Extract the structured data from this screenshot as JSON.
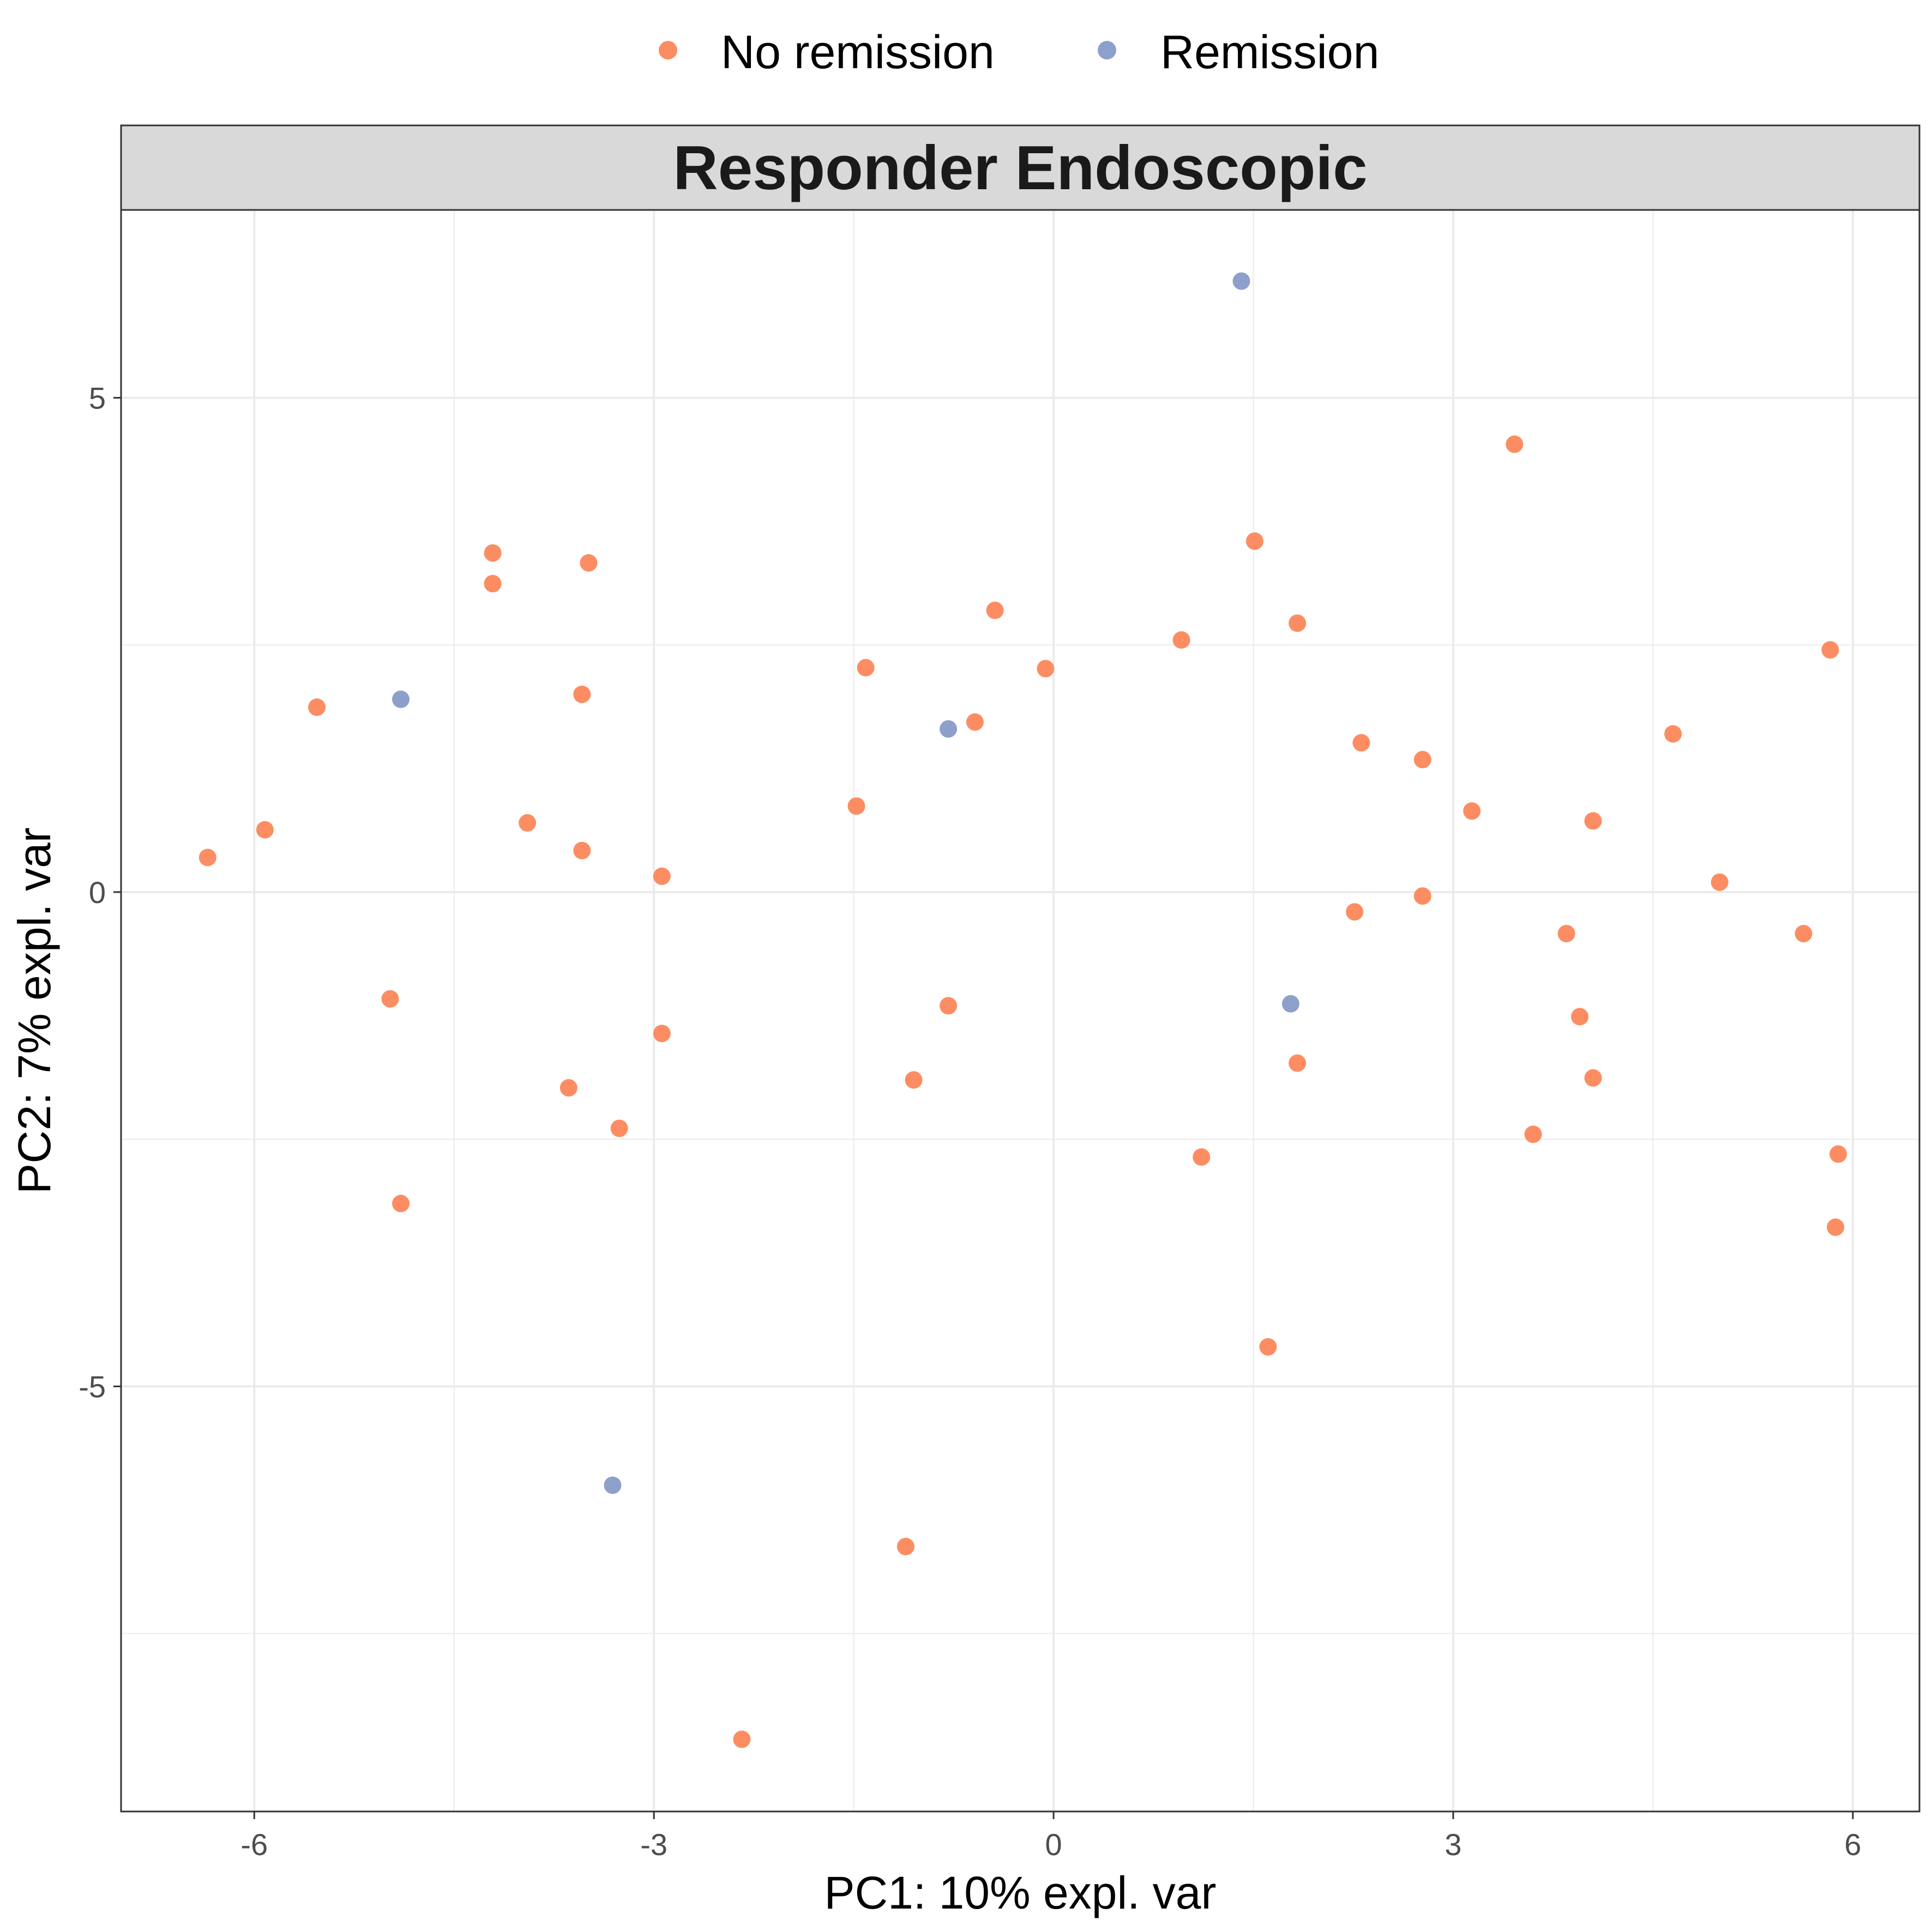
{
  "chart_data": {
    "type": "scatter",
    "title": "Responder Endoscopic",
    "xlabel": "PC1: 10% expl. var",
    "ylabel": "PC2: 7% expl. var",
    "xlim": [
      -7.0,
      6.5
    ],
    "ylim": [
      -9.3,
      6.9
    ],
    "x_ticks": [
      -6,
      -3,
      0,
      3,
      6
    ],
    "x_tick_labels": [
      "-6",
      "-3",
      "0",
      "3",
      "6"
    ],
    "y_ticks": [
      -5,
      0,
      5
    ],
    "y_tick_labels": [
      "-5",
      "0",
      "5"
    ],
    "grid": true,
    "legend_position": "top",
    "series": [
      {
        "name": "No remission",
        "color": "#FC8D62",
        "points": [
          [
            -6.35,
            0.35
          ],
          [
            -5.92,
            0.63
          ],
          [
            -5.53,
            1.87
          ],
          [
            -4.98,
            -1.08
          ],
          [
            -4.9,
            -3.15
          ],
          [
            -4.21,
            3.43
          ],
          [
            -4.21,
            3.12
          ],
          [
            -3.95,
            0.7
          ],
          [
            -3.64,
            -1.98
          ],
          [
            -3.54,
            2.0
          ],
          [
            -3.54,
            0.42
          ],
          [
            -3.49,
            3.33
          ],
          [
            -3.26,
            -2.39
          ],
          [
            -2.94,
            0.16
          ],
          [
            -2.94,
            -1.43
          ],
          [
            -2.34,
            -8.57
          ],
          [
            -1.48,
            0.87
          ],
          [
            -1.41,
            2.27
          ],
          [
            -1.11,
            -6.62
          ],
          [
            -1.05,
            -1.9
          ],
          [
            -0.79,
            -1.15
          ],
          [
            -0.59,
            1.72
          ],
          [
            -0.44,
            2.85
          ],
          [
            -0.06,
            2.26
          ],
          [
            0.96,
            2.55
          ],
          [
            1.11,
            -2.68
          ],
          [
            1.51,
            3.55
          ],
          [
            1.61,
            -4.6
          ],
          [
            1.83,
            -1.73
          ],
          [
            1.83,
            2.72
          ],
          [
            2.26,
            -0.2
          ],
          [
            2.31,
            1.51
          ],
          [
            2.77,
            1.34
          ],
          [
            2.77,
            -0.04
          ],
          [
            3.14,
            0.82
          ],
          [
            3.46,
            4.53
          ],
          [
            3.6,
            -2.45
          ],
          [
            3.85,
            -0.42
          ],
          [
            3.95,
            -1.26
          ],
          [
            4.05,
            0.72
          ],
          [
            4.05,
            -1.88
          ],
          [
            4.65,
            1.6
          ],
          [
            5.0,
            0.1
          ],
          [
            5.63,
            -0.42
          ],
          [
            5.83,
            2.45
          ],
          [
            5.87,
            -3.39
          ],
          [
            5.89,
            -2.65
          ]
        ]
      },
      {
        "name": "Remission",
        "color": "#8DA0CB",
        "points": [
          [
            -4.9,
            1.95
          ],
          [
            -3.31,
            -6.0
          ],
          [
            -0.79,
            1.65
          ],
          [
            1.41,
            6.18
          ],
          [
            1.78,
            -1.13
          ]
        ]
      }
    ]
  },
  "colors": {
    "strip_background": "#D9D9D9",
    "grid": "#EBEBEB",
    "panel_border": "#333333",
    "tick_text": "#4D4D4D"
  }
}
